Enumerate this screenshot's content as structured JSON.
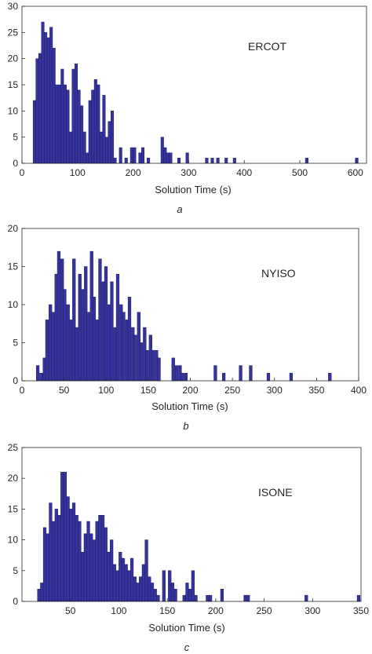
{
  "colors": {
    "bar_fill": "#35349e",
    "bar_edge": "#1c1b5e",
    "axis": "#262626",
    "background": "#ffffff"
  },
  "chart_data": [
    {
      "type": "bar",
      "annotation": "ERCOT",
      "caption": "a",
      "xlabel": "Solution Time (s)",
      "ylabel": "",
      "xlim": [
        0,
        620
      ],
      "ylim": [
        0,
        30
      ],
      "xticks": [
        0,
        100,
        200,
        300,
        400,
        500,
        600
      ],
      "yticks": [
        0,
        5,
        10,
        15,
        20,
        25,
        30
      ],
      "bin_width": 5,
      "series": [
        {
          "x": [
            20,
            25,
            30,
            35,
            40,
            45,
            50,
            55,
            60,
            65,
            70,
            75,
            80,
            85,
            90,
            95,
            100,
            105,
            110,
            115,
            120,
            125,
            130,
            135,
            140,
            145,
            150,
            155,
            160,
            165,
            175,
            185,
            195,
            200,
            210,
            215,
            225,
            250,
            255,
            260,
            265,
            280,
            295,
            330,
            340,
            350,
            365,
            380,
            510,
            600
          ],
          "values": [
            12,
            20,
            21,
            27,
            25,
            24,
            26,
            22,
            15,
            15,
            18,
            15,
            14,
            6,
            18,
            19,
            14,
            11,
            6,
            2,
            12,
            14,
            16,
            15,
            6,
            13,
            5,
            8,
            10,
            1,
            3,
            1,
            3,
            3,
            2,
            3,
            1,
            5,
            3,
            2,
            2,
            1,
            2,
            1,
            1,
            1,
            1,
            1,
            1,
            1
          ]
        }
      ]
    },
    {
      "type": "bar",
      "annotation": "NYISO",
      "caption": "b",
      "xlabel": "Solution Time (s)",
      "ylabel": "",
      "xlim": [
        0,
        400
      ],
      "ylim": [
        0,
        20
      ],
      "xticks": [
        0,
        50,
        100,
        150,
        200,
        250,
        300,
        350,
        400
      ],
      "yticks": [
        0,
        5,
        10,
        15,
        20
      ],
      "bin_width": 3.5,
      "series": [
        {
          "x": [
            17,
            21,
            25,
            28,
            32,
            35,
            39,
            42,
            46,
            49,
            53,
            56,
            60,
            63,
            67,
            70,
            74,
            77,
            81,
            84,
            88,
            91,
            95,
            98,
            102,
            105,
            109,
            112,
            116,
            119,
            123,
            126,
            130,
            133,
            137,
            140,
            144,
            147,
            151,
            154,
            158,
            161,
            178,
            182,
            186,
            189,
            193,
            228,
            238,
            258,
            270,
            291,
            318,
            364
          ],
          "values": [
            2,
            1,
            3,
            8,
            10,
            9,
            14,
            17,
            16,
            12,
            10,
            8,
            16,
            7,
            14,
            12,
            15,
            9,
            17,
            11,
            8,
            16,
            13,
            15,
            10,
            13,
            7,
            14,
            10,
            9,
            8,
            11,
            7,
            6,
            9,
            5,
            7,
            4,
            6,
            4,
            4,
            3,
            3,
            2,
            2,
            1,
            1,
            2,
            1,
            2,
            2,
            1,
            1,
            1
          ]
        }
      ]
    },
    {
      "type": "bar",
      "annotation": "ISONE",
      "caption": "c",
      "xlabel": "Solution Time (s)",
      "ylabel": "",
      "xlim": [
        0,
        350
      ],
      "ylim": [
        0,
        25
      ],
      "xticks": [
        50,
        100,
        150,
        200,
        250,
        300,
        350
      ],
      "yticks": [
        0,
        5,
        10,
        15,
        20,
        25
      ],
      "bin_width": 3,
      "series": [
        {
          "x": [
            16,
            19,
            22,
            25,
            28,
            31,
            34,
            37,
            40,
            43,
            46,
            49,
            52,
            55,
            58,
            61,
            64,
            67,
            70,
            73,
            76,
            79,
            82,
            85,
            88,
            91,
            94,
            97,
            100,
            103,
            106,
            109,
            112,
            115,
            118,
            121,
            124,
            127,
            130,
            133,
            136,
            139,
            145,
            151,
            154,
            157,
            166,
            169,
            172,
            175,
            178,
            190,
            193,
            205,
            229,
            232,
            292,
            346
          ],
          "values": [
            2,
            3,
            12,
            11,
            16,
            13,
            15,
            14,
            21,
            21,
            17,
            15,
            16,
            14,
            13,
            8,
            11,
            13,
            11,
            10,
            13,
            14,
            14,
            12,
            8,
            10,
            6,
            5,
            8,
            7,
            6,
            5,
            7,
            4,
            3,
            4,
            6,
            10,
            4,
            3,
            2,
            1,
            5,
            5,
            3,
            2,
            1,
            3,
            2,
            5,
            1,
            1,
            1,
            2,
            1,
            1,
            1,
            1
          ]
        }
      ]
    }
  ]
}
